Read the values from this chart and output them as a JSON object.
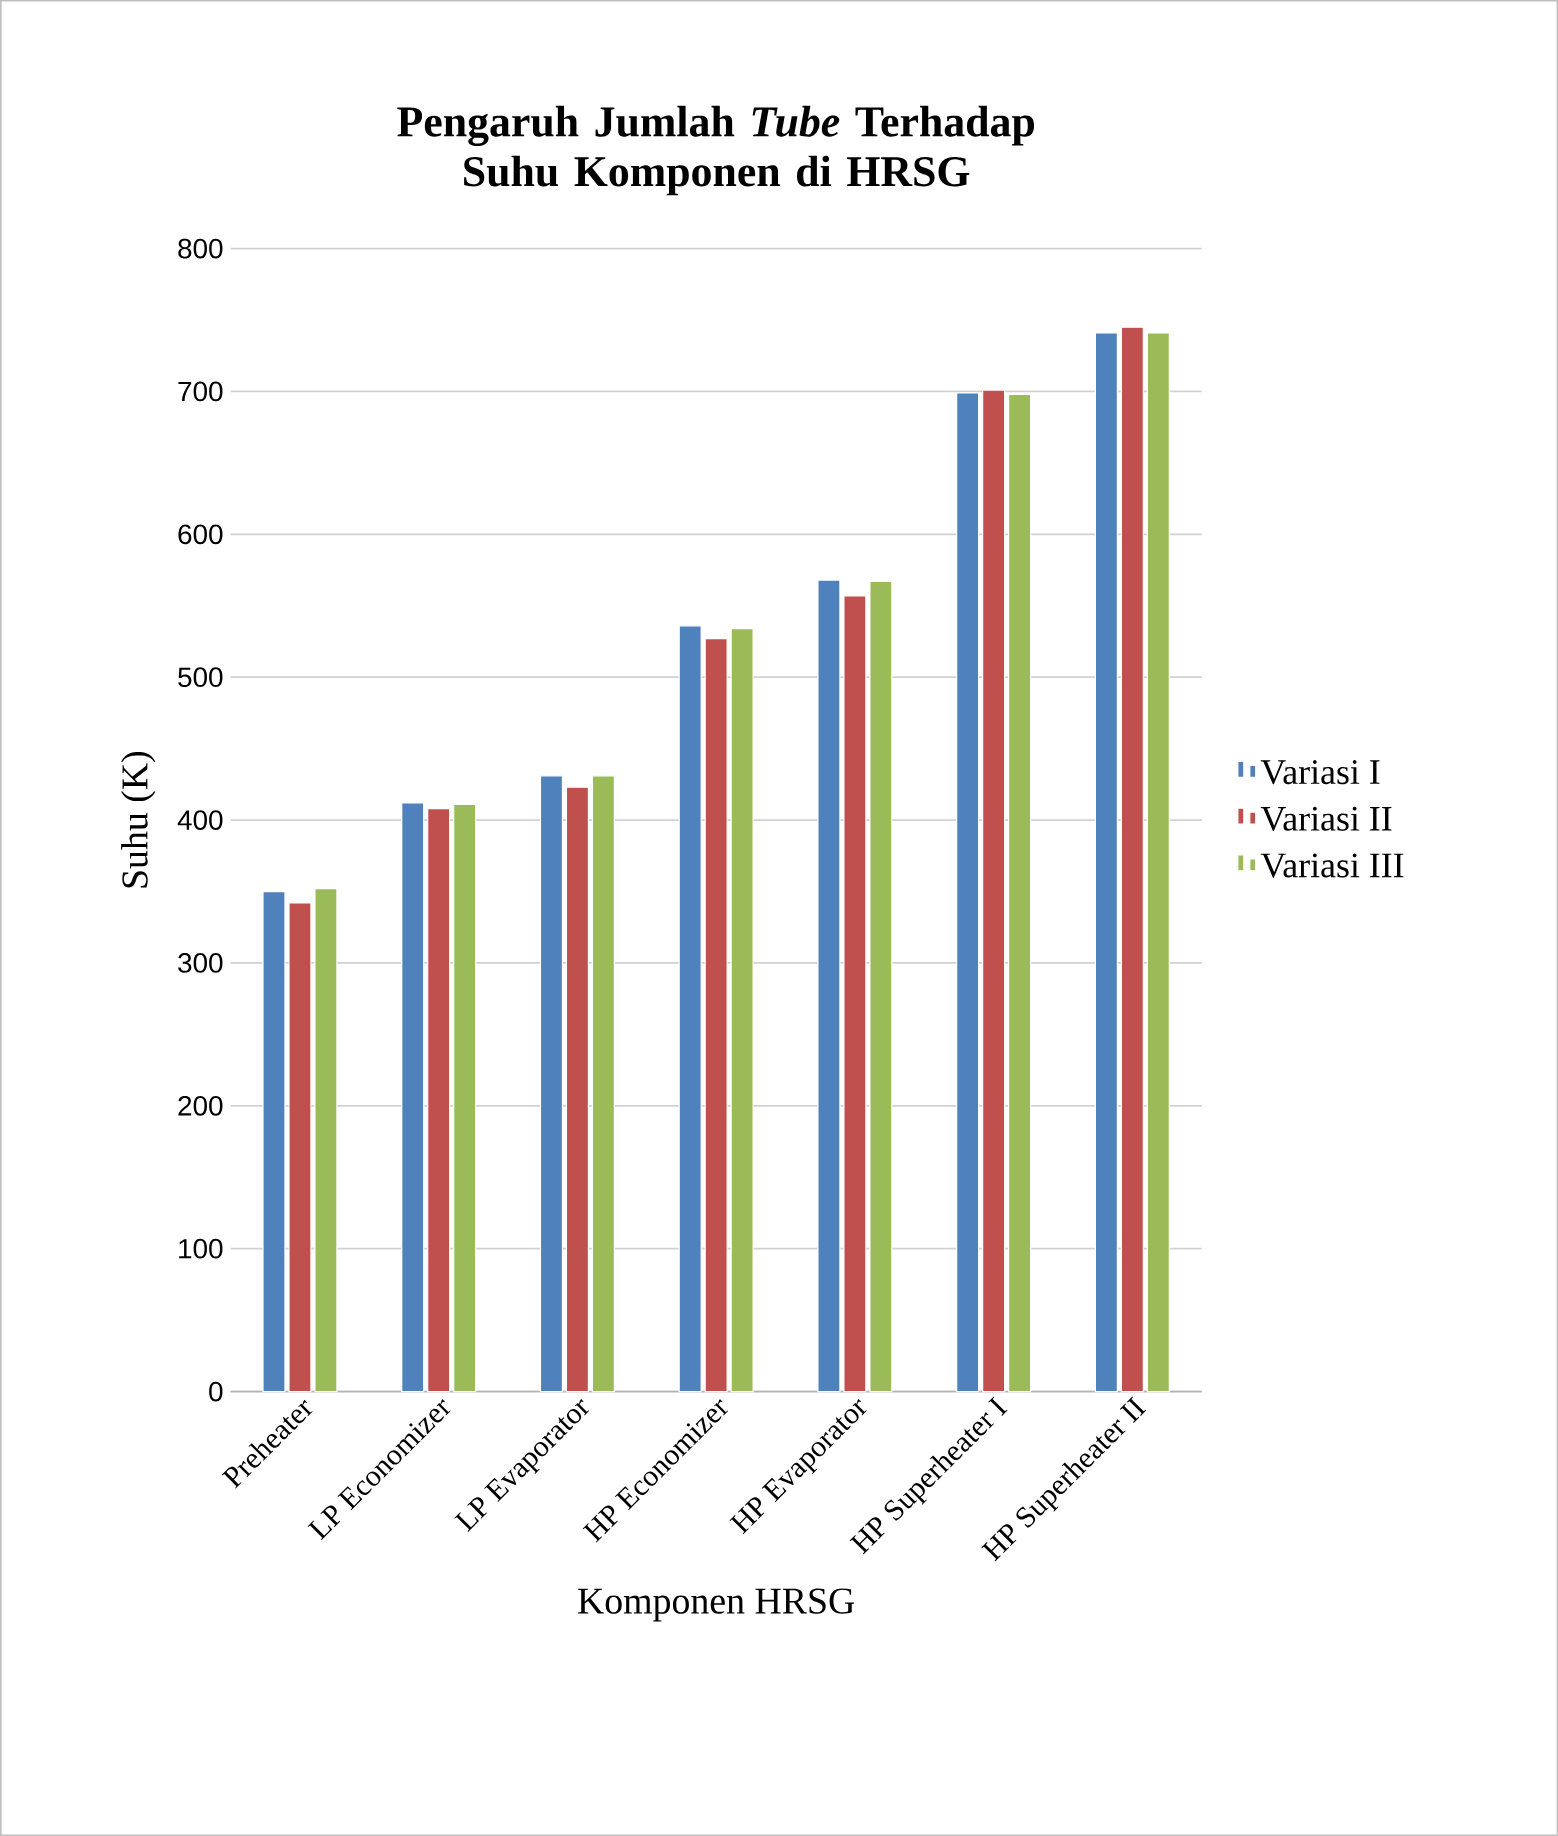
{
  "chart_data": {
    "type": "bar",
    "title": "Pengaruh Jumlah *Tube* Terhadap Suhu Komponen di HRSG",
    "xlabel": "Komponen HRSG",
    "ylabel": "Suhu (K)",
    "categories": [
      "Preheater",
      "LP Economizer",
      "LP Evaporator",
      "HP Economizer",
      "HP Evaporator",
      "HP Superheater I",
      "HP Superheater II"
    ],
    "series": [
      {
        "name": "Variasi I",
        "color": "#4f81bd",
        "values": [
          350,
          412,
          431,
          536,
          568,
          699,
          741
        ]
      },
      {
        "name": "Variasi II",
        "color": "#c0504d",
        "values": [
          342,
          408,
          423,
          527,
          557,
          701,
          745
        ]
      },
      {
        "name": "Variasi III",
        "color": "#9bbb59",
        "values": [
          352,
          411,
          431,
          534,
          567,
          698,
          741
        ]
      }
    ],
    "ylim": [
      0,
      800
    ],
    "yticks": [
      0,
      100,
      200,
      300,
      400,
      500,
      600,
      700,
      800
    ],
    "grid": "y",
    "legend": "right"
  }
}
